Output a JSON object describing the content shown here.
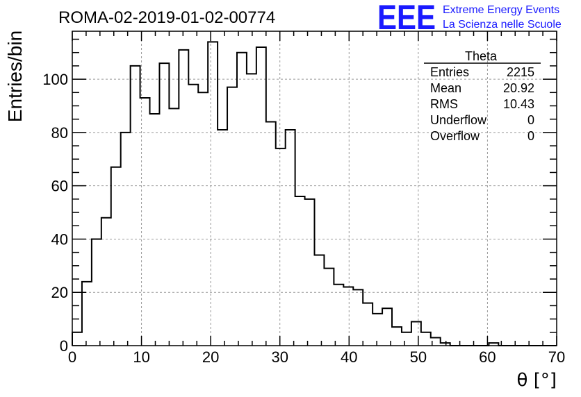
{
  "chart_data": {
    "type": "bar",
    "title": "ROMA-02-2019-01-02-00774",
    "xlabel": "θ [°]",
    "ylabel": "Entries/bin",
    "xlim": [
      0,
      70
    ],
    "ylim": [
      0,
      118
    ],
    "xticks": [
      0,
      10,
      20,
      30,
      40,
      50,
      60,
      70
    ],
    "yticks": [
      0,
      20,
      40,
      60,
      80,
      100
    ],
    "grid": true,
    "bin_width": 1.4,
    "values": [
      5,
      24,
      40,
      48,
      67,
      80,
      105,
      93,
      87,
      106,
      89,
      111,
      98,
      95,
      114,
      81,
      97,
      110,
      102,
      112,
      84,
      74,
      81,
      56,
      55,
      34,
      29,
      23,
      22,
      21,
      16,
      12,
      14,
      7,
      5,
      9,
      5,
      3,
      1,
      0,
      0,
      0,
      0,
      1,
      0,
      0,
      0,
      0,
      0,
      0
    ],
    "stats": {
      "title": "Theta",
      "rows": [
        {
          "label": "Entries",
          "value": "2215"
        },
        {
          "label": "Mean",
          "value": "20.92"
        },
        {
          "label": "RMS",
          "value": "10.43"
        },
        {
          "label": "Underflow",
          "value": "0"
        },
        {
          "label": "Overflow",
          "value": "0"
        }
      ]
    }
  },
  "logo": {
    "mark": "EEE",
    "line1": "Extreme Energy Events",
    "line2": "La Scienza nelle Scuole"
  }
}
